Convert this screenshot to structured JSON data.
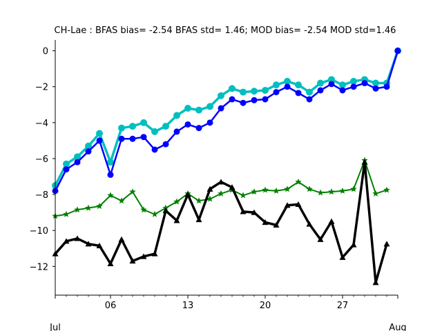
{
  "chart_data": {
    "type": "line",
    "title": "CH-Lae   : BFAS bias= -2.54 BFAS std= 1.46; MOD bias= -2.54 MOD std=1.46",
    "xlabel": "",
    "ylabel": "",
    "xlim": [
      1,
      32
    ],
    "ylim": [
      -13.6,
      0.6
    ],
    "x_ticks": [
      1,
      6,
      13,
      20,
      27,
      32
    ],
    "x_tick_labels": [
      "",
      "06",
      "13",
      "20",
      "27",
      ""
    ],
    "x_sub_labels": [
      {
        "x": 1,
        "label": "Jul"
      },
      {
        "x": 32,
        "label": "Aug"
      }
    ],
    "y_ticks": [
      0,
      -2,
      -4,
      -6,
      -8,
      -10,
      -12
    ],
    "y_tick_labels": [
      "0",
      "−2",
      "−4",
      "−6",
      "−8",
      "−10",
      "−12"
    ],
    "grid": false,
    "legend": "none",
    "series": [
      {
        "color": "#00bfbf",
        "marker": "circle",
        "x": [
          1,
          2,
          3,
          4,
          5,
          6,
          7,
          8,
          9,
          10,
          11,
          12,
          13,
          14,
          15,
          16,
          17,
          18,
          19,
          20,
          21,
          22,
          23,
          24,
          25,
          26,
          27,
          28,
          29,
          30,
          31,
          32
        ],
        "values": [
          -7.5,
          -6.3,
          -5.9,
          -5.3,
          -4.6,
          -6.2,
          -4.3,
          -4.2,
          -4.0,
          -4.5,
          -4.2,
          -3.6,
          -3.2,
          -3.3,
          -3.1,
          -2.5,
          -2.1,
          -2.3,
          -2.25,
          -2.2,
          -1.9,
          -1.7,
          -1.9,
          -2.3,
          -1.8,
          -1.6,
          -1.9,
          -1.7,
          -1.6,
          -1.8,
          -1.8,
          0.0
        ]
      },
      {
        "color": "#0000ff",
        "marker": "circle",
        "x": [
          1,
          2,
          3,
          4,
          5,
          6,
          7,
          8,
          9,
          10,
          11,
          12,
          13,
          14,
          15,
          16,
          17,
          18,
          19,
          20,
          21,
          22,
          23,
          24,
          25,
          26,
          27,
          28,
          29,
          30,
          31,
          32
        ],
        "values": [
          -7.8,
          -6.6,
          -6.2,
          -5.6,
          -5.0,
          -6.9,
          -4.9,
          -4.9,
          -4.8,
          -5.5,
          -5.2,
          -4.5,
          -4.1,
          -4.3,
          -4.0,
          -3.2,
          -2.7,
          -2.9,
          -2.75,
          -2.7,
          -2.3,
          -2.0,
          -2.35,
          -2.7,
          -2.2,
          -1.85,
          -2.2,
          -2.0,
          -1.8,
          -2.1,
          -2.0,
          0.0
        ]
      },
      {
        "color": "#008000",
        "marker": "star",
        "x": [
          1,
          2,
          3,
          4,
          5,
          6,
          7,
          8,
          9,
          10,
          11,
          12,
          13,
          14,
          15,
          16,
          17,
          18,
          19,
          20,
          21,
          22,
          23,
          24,
          25,
          26,
          27,
          28,
          29,
          30,
          31
        ],
        "values": [
          -9.2,
          -9.1,
          -8.85,
          -8.75,
          -8.65,
          -8.05,
          -8.35,
          -7.85,
          -8.85,
          -9.1,
          -8.75,
          -8.4,
          -7.95,
          -8.35,
          -8.25,
          -7.95,
          -7.75,
          -8.05,
          -7.85,
          -7.75,
          -7.8,
          -7.7,
          -7.3,
          -7.7,
          -7.9,
          -7.85,
          -7.8,
          -7.7,
          -6.1,
          -7.95,
          -7.75
        ]
      },
      {
        "color": "#000000",
        "marker": "triangle",
        "x": [
          1,
          2,
          3,
          4,
          5,
          6,
          7,
          8,
          9,
          10,
          11,
          12,
          13,
          14,
          15,
          16,
          17,
          18,
          19,
          20,
          21,
          22,
          23,
          24,
          25,
          26,
          27,
          28,
          29,
          30,
          31
        ],
        "values": [
          -11.3,
          -10.6,
          -10.45,
          -10.75,
          -10.85,
          -11.85,
          -10.5,
          -11.7,
          -11.45,
          -11.3,
          -8.9,
          -9.45,
          -8.0,
          -9.4,
          -7.7,
          -7.3,
          -7.6,
          -8.95,
          -9.0,
          -9.55,
          -9.7,
          -8.6,
          -8.55,
          -9.65,
          -10.5,
          -9.5,
          -11.5,
          -10.8,
          -6.2,
          -12.9,
          -10.75
        ]
      }
    ]
  }
}
